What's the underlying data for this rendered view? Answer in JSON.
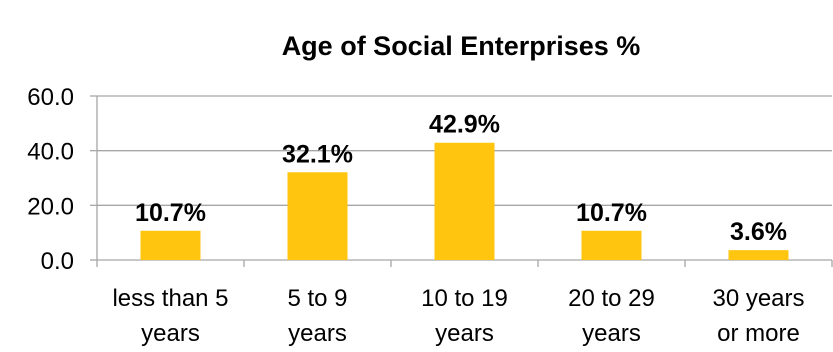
{
  "chart_data": {
    "type": "bar",
    "title": "Age of Social Enterprises %",
    "xlabel": "",
    "ylabel": "",
    "categories": [
      [
        "less than 5",
        "years"
      ],
      [
        "5 to 9",
        "years"
      ],
      [
        "10 to 19",
        "years"
      ],
      [
        "20 to 29",
        "years"
      ],
      [
        "30 years",
        "or more"
      ]
    ],
    "values": [
      10.7,
      32.1,
      42.9,
      10.7,
      3.6
    ],
    "data_labels": [
      "10.7%",
      "32.1%",
      "42.9%",
      "10.7%",
      "3.6%"
    ],
    "ylim": [
      0,
      60
    ],
    "yticks": [
      "0.0",
      "20.0",
      "40.0",
      "60.0"
    ],
    "ytick_values": [
      0,
      20,
      40,
      60
    ],
    "grid": true,
    "legend": "none",
    "colors": {
      "bar": "#FFC50F",
      "grid": "#A6A6A6",
      "axis": "#A6A6A6"
    }
  }
}
